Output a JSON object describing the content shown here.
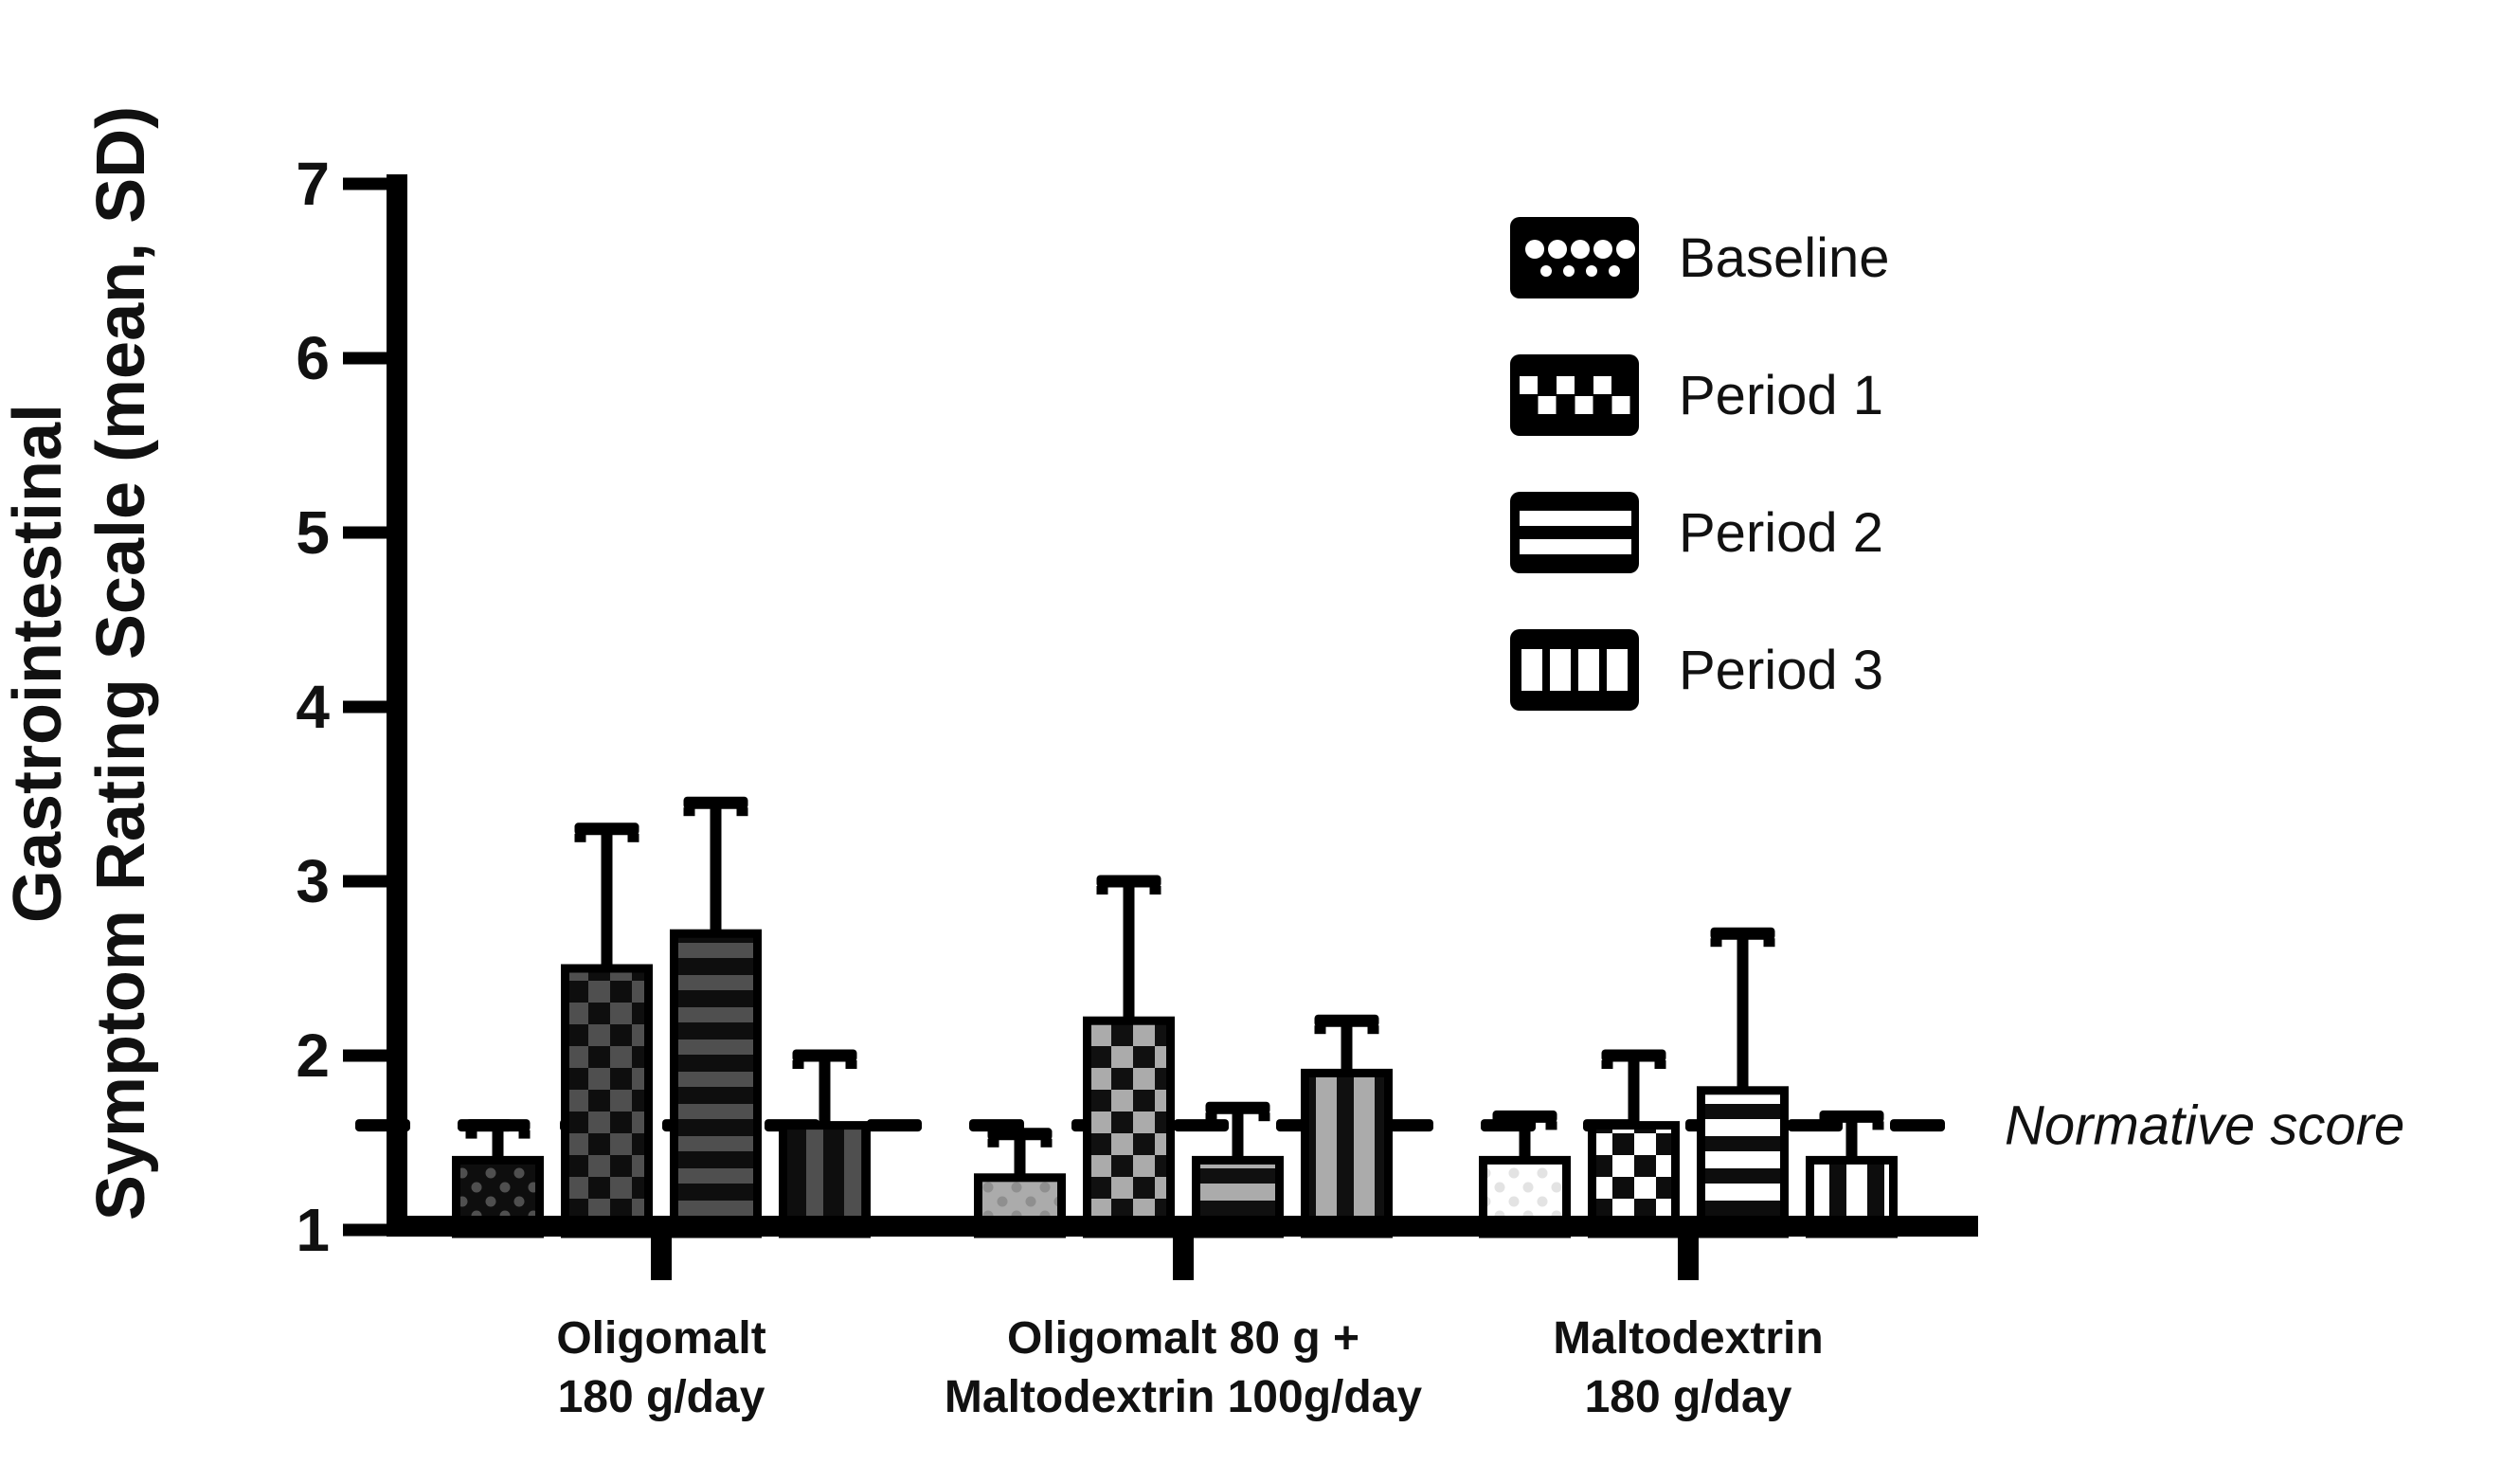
{
  "chart_data": {
    "type": "bar",
    "title": "",
    "ylabel_lines": [
      "Gastrointestinal",
      "Symptom Rating Scale (mean, SD)"
    ],
    "y_axis": {
      "min": 1,
      "max": 7,
      "tick_step": 1,
      "ticks": [
        "1",
        "2",
        "3",
        "4",
        "5",
        "6",
        "7"
      ]
    },
    "categories": [
      "Oligomalt 180 g/day",
      "Oligomalt 80 g + Maltodextrin 100g/day",
      "Maltodextrin 180 g/day"
    ],
    "category_label_lines": [
      [
        "Oligomalt",
        "180 g/day"
      ],
      [
        "Oligomalt 80 g +",
        "Maltodextrin 100g/day"
      ],
      [
        "Maltodextrin",
        "180 g/day"
      ]
    ],
    "series": [
      {
        "name": "Baseline",
        "pattern": "dots",
        "values": [
          1.4,
          1.3,
          1.4
        ],
        "sd": [
          0.2,
          0.25,
          0.25
        ]
      },
      {
        "name": "Period 1",
        "pattern": "checker",
        "values": [
          2.5,
          2.2,
          1.6
        ],
        "sd": [
          0.8,
          0.8,
          0.4
        ]
      },
      {
        "name": "Period 2",
        "pattern": "hstripes",
        "values": [
          2.7,
          1.4,
          1.8
        ],
        "sd": [
          0.75,
          0.3,
          0.9
        ]
      },
      {
        "name": "Period 3",
        "pattern": "vstripes",
        "values": [
          1.6,
          1.9,
          1.4
        ],
        "sd": [
          0.4,
          0.3,
          0.25
        ]
      }
    ],
    "group_fills": [
      {
        "bg": "#0e0e0e",
        "fg": "#4f4f4f",
        "dots_fg": "#4f4f4f"
      },
      {
        "bg": "#ababab",
        "fg": "#101010",
        "dots_fg": "#8f8f8f"
      },
      {
        "bg": "#ffffff",
        "fg": "#0d0d0d",
        "dots_fg": "#e3e3e3"
      }
    ],
    "normative_line": {
      "value": 1.6,
      "label": "Normative score",
      "style": "dashed",
      "color": "#000000"
    },
    "legend_position": "top-right",
    "grid": false,
    "axis_color": "#000000",
    "ylim": [
      1,
      7
    ]
  }
}
